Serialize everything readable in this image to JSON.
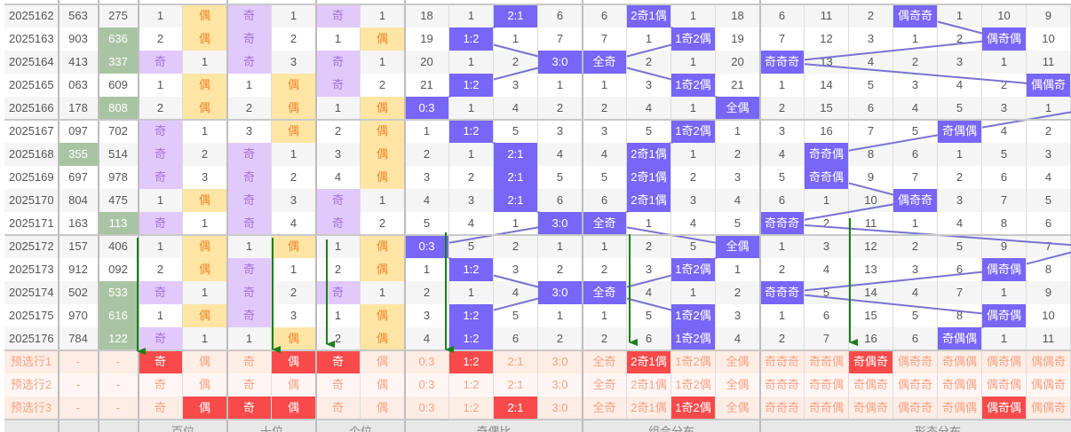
{
  "colors": {
    "odd_cell": "#e2c9fb",
    "even_cell": "#fee5a4",
    "hit": "#7766f8",
    "repeat_highlight": "#a9c4a2",
    "preselect_hit": "#f84a4a",
    "trend_line": "#7a72d2",
    "arrow": "#1a7f1a"
  },
  "footer": {
    "groups": [
      "百位",
      "十位",
      "个位",
      "奇偶比",
      "组合分布",
      "形态分布"
    ]
  },
  "rows": [
    {
      "issue": "2025162",
      "n1": "563",
      "n2": "275",
      "bai": [
        "1",
        "偶"
      ],
      "shi": [
        "奇",
        "1"
      ],
      "ge": [
        "奇",
        "1"
      ],
      "ratio": [
        "18",
        "1",
        "2:1",
        "6"
      ],
      "combo": [
        "6",
        "2奇1偶",
        "1",
        "18"
      ],
      "form": [
        "6",
        "11",
        "2",
        "偶奇奇",
        "1",
        "10",
        "9"
      ],
      "form_hit": 3
    },
    {
      "issue": "2025163",
      "n1": "903",
      "n2": "636",
      "n2_repeat": true,
      "bai": [
        "2",
        "偶"
      ],
      "shi": [
        "奇",
        "2"
      ],
      "ge": [
        "1",
        "偶"
      ],
      "ratio": [
        "19",
        "1:2",
        "1",
        "7"
      ],
      "combo": [
        "7",
        "1",
        "1奇2偶",
        "19"
      ],
      "form": [
        "7",
        "12",
        "3",
        "1",
        "2",
        "偶奇偶",
        "10"
      ],
      "form_hit": 5
    },
    {
      "issue": "2025164",
      "n1": "413",
      "n2": "337",
      "n2_repeat": true,
      "bai": [
        "奇",
        "1"
      ],
      "shi": [
        "奇",
        "3"
      ],
      "ge": [
        "奇",
        "1"
      ],
      "ratio": [
        "20",
        "1",
        "2",
        "3:0"
      ],
      "combo": [
        "全奇",
        "2",
        "1",
        "20"
      ],
      "form": [
        "奇奇奇",
        "13",
        "4",
        "2",
        "3",
        "1",
        "11"
      ],
      "form_hit": 0
    },
    {
      "issue": "2025165",
      "n1": "063",
      "n2": "609",
      "bai": [
        "1",
        "偶"
      ],
      "shi": [
        "1",
        "偶"
      ],
      "ge": [
        "奇",
        "2"
      ],
      "ratio": [
        "21",
        "1:2",
        "3",
        "1"
      ],
      "combo": [
        "1",
        "3",
        "1奇2偶",
        "21"
      ],
      "form": [
        "1",
        "14",
        "5",
        "3",
        "4",
        "2",
        "偶偶奇"
      ],
      "form_hit": 6
    },
    {
      "issue": "2025166",
      "n1": "178",
      "n2": "808",
      "n2_repeat": true,
      "bai": [
        "2",
        "偶"
      ],
      "shi": [
        "2",
        "偶"
      ],
      "ge": [
        "1",
        "偶"
      ],
      "ratio": [
        "0:3",
        "1",
        "4",
        "2"
      ],
      "combo": [
        "2",
        "4",
        "1",
        "全偶"
      ],
      "form": [
        "2",
        "15",
        "6",
        "4",
        "5",
        "3",
        "1"
      ],
      "form_hit": 7
    },
    {
      "issue": "2025167",
      "n1": "097",
      "n2": "702",
      "bai": [
        "奇",
        "1"
      ],
      "shi": [
        "3",
        "偶"
      ],
      "ge": [
        "2",
        "偶"
      ],
      "ratio": [
        "1",
        "1:2",
        "5",
        "3"
      ],
      "combo": [
        "3",
        "5",
        "1奇2偶",
        "1"
      ],
      "form": [
        "3",
        "16",
        "7",
        "5",
        "奇偶偶",
        "4",
        "2"
      ],
      "form_hit": 4
    },
    {
      "issue": "2025168",
      "n1": "355",
      "n1_repeat": true,
      "n2": "514",
      "bai": [
        "奇",
        "2"
      ],
      "shi": [
        "奇",
        "1"
      ],
      "ge": [
        "3",
        "偶"
      ],
      "ratio": [
        "2",
        "1",
        "2:1",
        "4"
      ],
      "combo": [
        "4",
        "2奇1偶",
        "1",
        "2"
      ],
      "form": [
        "4",
        "奇奇偶",
        "8",
        "6",
        "1",
        "5",
        "3"
      ],
      "form_hit": 1
    },
    {
      "issue": "2025169",
      "n1": "697",
      "n2": "978",
      "bai": [
        "奇",
        "3"
      ],
      "shi": [
        "奇",
        "2"
      ],
      "ge": [
        "4",
        "偶"
      ],
      "ratio": [
        "3",
        "2",
        "2:1",
        "5"
      ],
      "combo": [
        "5",
        "2奇1偶",
        "2",
        "3"
      ],
      "form": [
        "5",
        "奇奇偶",
        "9",
        "7",
        "2",
        "6",
        "4"
      ],
      "form_hit": 1
    },
    {
      "issue": "2025170",
      "n1": "804",
      "n2": "475",
      "bai": [
        "1",
        "偶"
      ],
      "shi": [
        "奇",
        "3"
      ],
      "ge": [
        "奇",
        "1"
      ],
      "ratio": [
        "4",
        "3",
        "2:1",
        "6"
      ],
      "combo": [
        "6",
        "2奇1偶",
        "3",
        "4"
      ],
      "form": [
        "6",
        "1",
        "10",
        "偶奇奇",
        "3",
        "7",
        "5"
      ],
      "form_hit": 3
    },
    {
      "issue": "2025171",
      "n1": "163",
      "n2": "113",
      "n2_repeat": true,
      "bai": [
        "奇",
        "1"
      ],
      "shi": [
        "奇",
        "4"
      ],
      "ge": [
        "奇",
        "2"
      ],
      "ratio": [
        "5",
        "4",
        "1",
        "3:0"
      ],
      "combo": [
        "全奇",
        "1",
        "4",
        "5"
      ],
      "form": [
        "奇奇奇",
        "2",
        "11",
        "1",
        "4",
        "8",
        "6"
      ],
      "form_hit": 0
    },
    {
      "issue": "2025172",
      "n1": "157",
      "n2": "406",
      "bai": [
        "1",
        "偶"
      ],
      "shi": [
        "1",
        "偶"
      ],
      "ge": [
        "1",
        "偶"
      ],
      "ratio": [
        "0:3",
        "5",
        "2",
        "1"
      ],
      "combo": [
        "1",
        "2",
        "5",
        "全偶"
      ],
      "form": [
        "1",
        "3",
        "12",
        "2",
        "5",
        "9",
        "7"
      ],
      "form_hit": 7
    },
    {
      "issue": "2025173",
      "n1": "912",
      "n2": "092",
      "bai": [
        "2",
        "偶"
      ],
      "shi": [
        "奇",
        "1"
      ],
      "ge": [
        "2",
        "偶"
      ],
      "ratio": [
        "1",
        "1:2",
        "3",
        "2"
      ],
      "combo": [
        "2",
        "3",
        "1奇2偶",
        "1"
      ],
      "form": [
        "2",
        "4",
        "13",
        "3",
        "6",
        "偶奇偶",
        "8"
      ],
      "form_hit": 5
    },
    {
      "issue": "2025174",
      "n1": "502",
      "n2": "533",
      "n2_repeat": true,
      "bai": [
        "奇",
        "1"
      ],
      "shi": [
        "奇",
        "2"
      ],
      "ge": [
        "奇",
        "1"
      ],
      "ratio": [
        "2",
        "1",
        "4",
        "3:0"
      ],
      "combo": [
        "全奇",
        "4",
        "1",
        "2"
      ],
      "form": [
        "奇奇奇",
        "5",
        "14",
        "4",
        "7",
        "1",
        "9"
      ],
      "form_hit": 0
    },
    {
      "issue": "2025175",
      "n1": "970",
      "n2": "616",
      "n2_repeat": true,
      "bai": [
        "1",
        "偶"
      ],
      "shi": [
        "奇",
        "3"
      ],
      "ge": [
        "1",
        "偶"
      ],
      "ratio": [
        "3",
        "1:2",
        "5",
        "1"
      ],
      "combo": [
        "1",
        "5",
        "1奇2偶",
        "3"
      ],
      "form": [
        "1",
        "6",
        "15",
        "5",
        "8",
        "偶奇偶",
        "10"
      ],
      "form_hit": 5
    },
    {
      "issue": "2025176",
      "n1": "784",
      "n2": "122",
      "n2_repeat": true,
      "bai": [
        "奇",
        "1"
      ],
      "shi": [
        "1",
        "偶"
      ],
      "ge": [
        "2",
        "偶"
      ],
      "ratio": [
        "4",
        "1:2",
        "6",
        "2"
      ],
      "combo": [
        "2",
        "6",
        "1奇2偶",
        "4"
      ],
      "form": [
        "2",
        "7",
        "16",
        "6",
        "奇偶偶",
        "1",
        "11"
      ],
      "form_hit": 4
    }
  ],
  "preselect": [
    {
      "label": "预选行1",
      "n1": "-",
      "n2": "-",
      "cells": [
        "奇",
        "偶",
        "奇",
        "偶",
        "奇",
        "偶",
        "0:3",
        "1:2",
        "2:1",
        "3:0",
        "全奇",
        "2奇1偶",
        "1奇2偶",
        "全偶",
        "奇奇奇",
        "奇奇偶",
        "奇偶奇",
        "偶奇奇",
        "奇偶偶",
        "偶奇偶",
        "偶偶奇"
      ],
      "selected": [
        0,
        3,
        4,
        7,
        11,
        16
      ]
    },
    {
      "label": "预选行2",
      "n1": "-",
      "n2": "-",
      "cells": [
        "奇",
        "偶",
        "奇",
        "偶",
        "奇",
        "偶",
        "0:3",
        "1:2",
        "2:1",
        "3:0",
        "全奇",
        "2奇1偶",
        "1奇2偶",
        "全偶",
        "奇奇奇",
        "奇奇偶",
        "奇偶奇",
        "偶奇奇",
        "奇偶偶",
        "偶奇偶",
        "偶偶奇"
      ],
      "selected": []
    },
    {
      "label": "预选行3",
      "n1": "-",
      "n2": "-",
      "cells": [
        "奇",
        "偶",
        "奇",
        "偶",
        "奇",
        "偶",
        "0:3",
        "1:2",
        "2:1",
        "3:0",
        "全奇",
        "2奇1偶",
        "1奇2偶",
        "全偶",
        "奇奇奇",
        "奇奇偶",
        "奇偶奇",
        "偶奇奇",
        "奇偶偶",
        "偶奇偶",
        "偶偶奇"
      ],
      "selected": [
        1,
        2,
        3,
        8,
        12,
        19
      ]
    }
  ]
}
